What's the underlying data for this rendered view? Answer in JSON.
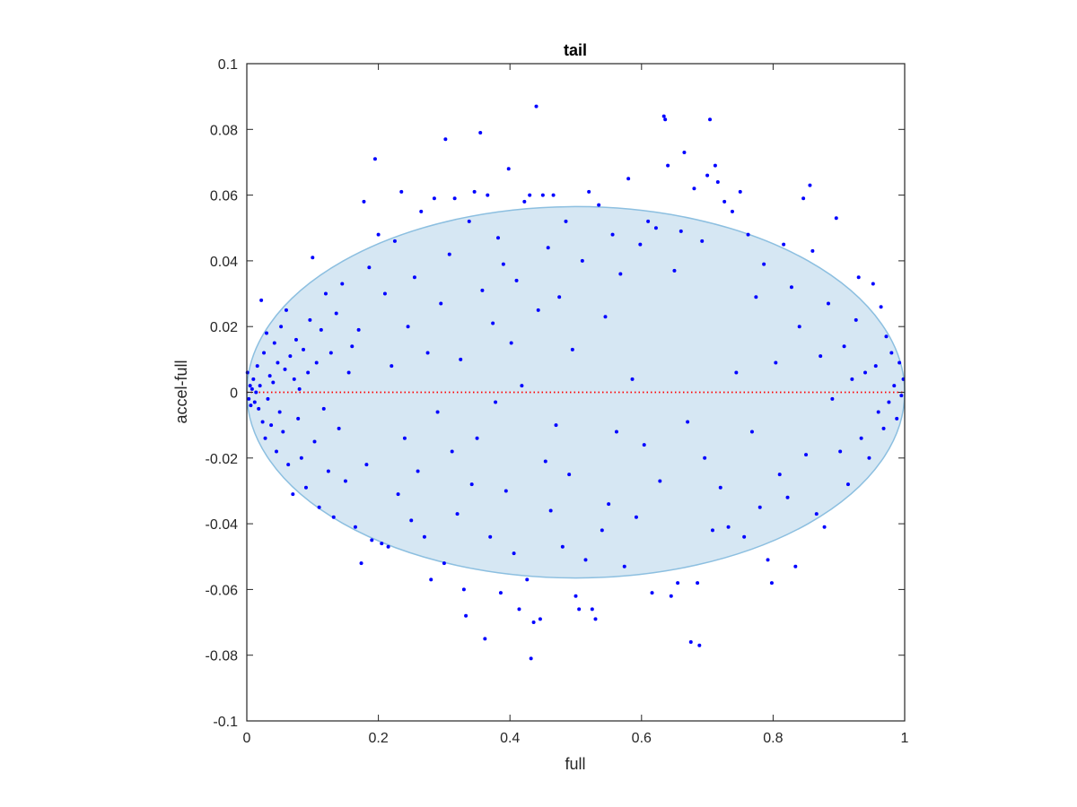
{
  "chart_data": {
    "type": "scatter",
    "title": "tail",
    "xlabel": "full",
    "ylabel": "accel-full",
    "xlim": [
      0,
      1
    ],
    "ylim": [
      -0.1,
      0.1
    ],
    "xticks": [
      0,
      0.2,
      0.4,
      0.6,
      0.8,
      1
    ],
    "xtick_labels": [
      "0",
      "0.2",
      "0.4",
      "0.6",
      "0.8",
      "1"
    ],
    "yticks": [
      -0.1,
      -0.08,
      -0.06,
      -0.04,
      -0.02,
      0,
      0.02,
      0.04,
      0.06,
      0.08,
      0.1
    ],
    "ytick_labels": [
      "-0.1",
      "-0.08",
      "-0.06",
      "-0.04",
      "-0.02",
      "0",
      "0.02",
      "0.04",
      "0.06",
      "0.08",
      "0.1"
    ],
    "grid": false,
    "box": true,
    "reference_line": {
      "y": 0,
      "x_range": [
        0,
        1
      ],
      "color": "#ff0000",
      "style": "dotted"
    },
    "region": {
      "shape": "ellipse",
      "center": [
        0.5,
        0
      ],
      "x_semi_axis": 0.5,
      "y_semi_axis": 0.0565,
      "fill": "#d6e7f3",
      "stroke": "#8cbfe0"
    },
    "series": [
      {
        "marker_color": "#0000ff",
        "points": [
          [
            0.001,
            0.006
          ],
          [
            0.003,
            -0.002
          ],
          [
            0.005,
            0.002
          ],
          [
            0.006,
            -0.004
          ],
          [
            0.008,
            0.001
          ],
          [
            0.01,
            0.004
          ],
          [
            0.012,
            -0.003
          ],
          [
            0.014,
            0.0
          ],
          [
            0.016,
            0.008
          ],
          [
            0.018,
            -0.005
          ],
          [
            0.02,
            0.002
          ],
          [
            0.022,
            0.028
          ],
          [
            0.024,
            -0.009
          ],
          [
            0.026,
            0.012
          ],
          [
            0.028,
            -0.014
          ],
          [
            0.03,
            0.018
          ],
          [
            0.032,
            -0.002
          ],
          [
            0.035,
            0.005
          ],
          [
            0.037,
            -0.01
          ],
          [
            0.04,
            0.003
          ],
          [
            0.042,
            0.015
          ],
          [
            0.045,
            -0.018
          ],
          [
            0.047,
            0.009
          ],
          [
            0.05,
            -0.006
          ],
          [
            0.052,
            0.02
          ],
          [
            0.055,
            -0.012
          ],
          [
            0.058,
            0.007
          ],
          [
            0.06,
            0.025
          ],
          [
            0.063,
            -0.022
          ],
          [
            0.066,
            0.011
          ],
          [
            0.07,
            -0.031
          ],
          [
            0.072,
            0.004
          ],
          [
            0.075,
            0.016
          ],
          [
            0.078,
            -0.008
          ],
          [
            0.08,
            0.001
          ],
          [
            0.083,
            -0.02
          ],
          [
            0.086,
            0.013
          ],
          [
            0.09,
            -0.029
          ],
          [
            0.093,
            0.006
          ],
          [
            0.096,
            0.022
          ],
          [
            0.1,
            0.041
          ],
          [
            0.103,
            -0.015
          ],
          [
            0.106,
            0.009
          ],
          [
            0.11,
            -0.035
          ],
          [
            0.113,
            0.019
          ],
          [
            0.117,
            -0.005
          ],
          [
            0.12,
            0.03
          ],
          [
            0.124,
            -0.024
          ],
          [
            0.128,
            0.012
          ],
          [
            0.132,
            -0.038
          ],
          [
            0.136,
            0.024
          ],
          [
            0.14,
            -0.011
          ],
          [
            0.145,
            0.033
          ],
          [
            0.15,
            -0.027
          ],
          [
            0.155,
            0.006
          ],
          [
            0.16,
            0.014
          ],
          [
            0.165,
            -0.041
          ],
          [
            0.17,
            0.019
          ],
          [
            0.174,
            -0.052
          ],
          [
            0.178,
            0.058
          ],
          [
            0.182,
            -0.022
          ],
          [
            0.186,
            0.038
          ],
          [
            0.19,
            -0.045
          ],
          [
            0.195,
            0.071
          ],
          [
            0.2,
            0.048
          ],
          [
            0.205,
            -0.046
          ],
          [
            0.21,
            0.03
          ],
          [
            0.215,
            -0.047
          ],
          [
            0.22,
            0.008
          ],
          [
            0.225,
            0.046
          ],
          [
            0.23,
            -0.031
          ],
          [
            0.235,
            0.061
          ],
          [
            0.24,
            -0.014
          ],
          [
            0.245,
            0.02
          ],
          [
            0.25,
            -0.039
          ],
          [
            0.255,
            0.035
          ],
          [
            0.26,
            -0.024
          ],
          [
            0.265,
            0.055
          ],
          [
            0.27,
            -0.044
          ],
          [
            0.275,
            0.012
          ],
          [
            0.28,
            -0.057
          ],
          [
            0.285,
            0.059
          ],
          [
            0.29,
            -0.006
          ],
          [
            0.295,
            0.027
          ],
          [
            0.3,
            -0.052
          ],
          [
            0.302,
            0.077
          ],
          [
            0.308,
            0.042
          ],
          [
            0.312,
            -0.018
          ],
          [
            0.316,
            0.059
          ],
          [
            0.32,
            -0.037
          ],
          [
            0.325,
            0.01
          ],
          [
            0.33,
            -0.06
          ],
          [
            0.333,
            -0.068
          ],
          [
            0.338,
            0.052
          ],
          [
            0.342,
            -0.028
          ],
          [
            0.346,
            0.061
          ],
          [
            0.35,
            -0.014
          ],
          [
            0.355,
            0.079
          ],
          [
            0.358,
            0.031
          ],
          [
            0.362,
            -0.075
          ],
          [
            0.366,
            0.06
          ],
          [
            0.37,
            -0.044
          ],
          [
            0.374,
            0.021
          ],
          [
            0.378,
            -0.003
          ],
          [
            0.382,
            0.047
          ],
          [
            0.386,
            -0.061
          ],
          [
            0.39,
            0.039
          ],
          [
            0.394,
            -0.03
          ],
          [
            0.398,
            0.068
          ],
          [
            0.402,
            0.015
          ],
          [
            0.406,
            -0.049
          ],
          [
            0.41,
            0.034
          ],
          [
            0.414,
            -0.066
          ],
          [
            0.418,
            0.002
          ],
          [
            0.422,
            0.058
          ],
          [
            0.426,
            -0.057
          ],
          [
            0.43,
            0.06
          ],
          [
            0.432,
            -0.081
          ],
          [
            0.436,
            -0.07
          ],
          [
            0.44,
            0.087
          ],
          [
            0.443,
            0.025
          ],
          [
            0.446,
            -0.069
          ],
          [
            0.45,
            0.06
          ],
          [
            0.454,
            -0.021
          ],
          [
            0.458,
            0.044
          ],
          [
            0.462,
            -0.036
          ],
          [
            0.466,
            0.06
          ],
          [
            0.47,
            -0.01
          ],
          [
            0.475,
            0.029
          ],
          [
            0.48,
            -0.047
          ],
          [
            0.485,
            0.052
          ],
          [
            0.49,
            -0.025
          ],
          [
            0.495,
            0.013
          ],
          [
            0.5,
            -0.062
          ],
          [
            0.505,
            -0.066
          ],
          [
            0.51,
            0.04
          ],
          [
            0.515,
            -0.051
          ],
          [
            0.52,
            0.061
          ],
          [
            0.525,
            -0.066
          ],
          [
            0.53,
            -0.069
          ],
          [
            0.535,
            0.057
          ],
          [
            0.54,
            -0.042
          ],
          [
            0.545,
            0.023
          ],
          [
            0.55,
            -0.034
          ],
          [
            0.556,
            0.048
          ],
          [
            0.562,
            -0.012
          ],
          [
            0.568,
            0.036
          ],
          [
            0.574,
            -0.053
          ],
          [
            0.58,
            0.065
          ],
          [
            0.586,
            0.004
          ],
          [
            0.592,
            -0.038
          ],
          [
            0.598,
            0.045
          ],
          [
            0.604,
            -0.016
          ],
          [
            0.61,
            0.052
          ],
          [
            0.616,
            -0.061
          ],
          [
            0.622,
            0.05
          ],
          [
            0.628,
            -0.027
          ],
          [
            0.634,
            0.084
          ],
          [
            0.636,
            0.083
          ],
          [
            0.64,
            0.069
          ],
          [
            0.645,
            -0.062
          ],
          [
            0.65,
            0.037
          ],
          [
            0.655,
            -0.058
          ],
          [
            0.66,
            0.049
          ],
          [
            0.665,
            0.073
          ],
          [
            0.67,
            -0.009
          ],
          [
            0.675,
            -0.076
          ],
          [
            0.68,
            0.062
          ],
          [
            0.685,
            -0.058
          ],
          [
            0.688,
            -0.077
          ],
          [
            0.692,
            0.046
          ],
          [
            0.696,
            -0.02
          ],
          [
            0.7,
            0.066
          ],
          [
            0.704,
            0.083
          ],
          [
            0.708,
            -0.042
          ],
          [
            0.712,
            0.069
          ],
          [
            0.716,
            0.064
          ],
          [
            0.72,
            -0.029
          ],
          [
            0.726,
            0.058
          ],
          [
            0.732,
            -0.041
          ],
          [
            0.738,
            0.055
          ],
          [
            0.744,
            0.006
          ],
          [
            0.75,
            0.061
          ],
          [
            0.756,
            -0.044
          ],
          [
            0.762,
            0.048
          ],
          [
            0.768,
            -0.012
          ],
          [
            0.774,
            0.029
          ],
          [
            0.78,
            -0.035
          ],
          [
            0.786,
            0.039
          ],
          [
            0.792,
            -0.051
          ],
          [
            0.798,
            -0.058
          ],
          [
            0.804,
            0.009
          ],
          [
            0.81,
            -0.025
          ],
          [
            0.816,
            0.045
          ],
          [
            0.822,
            -0.032
          ],
          [
            0.828,
            0.032
          ],
          [
            0.834,
            -0.053
          ],
          [
            0.84,
            0.02
          ],
          [
            0.846,
            0.059
          ],
          [
            0.85,
            -0.019
          ],
          [
            0.856,
            0.063
          ],
          [
            0.86,
            0.043
          ],
          [
            0.866,
            -0.037
          ],
          [
            0.872,
            0.011
          ],
          [
            0.878,
            -0.041
          ],
          [
            0.884,
            0.027
          ],
          [
            0.89,
            -0.002
          ],
          [
            0.896,
            0.053
          ],
          [
            0.902,
            -0.018
          ],
          [
            0.908,
            0.014
          ],
          [
            0.914,
            -0.028
          ],
          [
            0.92,
            0.004
          ],
          [
            0.926,
            0.022
          ],
          [
            0.93,
            0.035
          ],
          [
            0.934,
            -0.014
          ],
          [
            0.94,
            0.006
          ],
          [
            0.946,
            -0.02
          ],
          [
            0.952,
            0.033
          ],
          [
            0.956,
            0.008
          ],
          [
            0.96,
            -0.006
          ],
          [
            0.964,
            0.026
          ],
          [
            0.968,
            -0.011
          ],
          [
            0.972,
            0.017
          ],
          [
            0.976,
            -0.003
          ],
          [
            0.98,
            0.012
          ],
          [
            0.984,
            0.002
          ],
          [
            0.988,
            -0.008
          ],
          [
            0.992,
            0.009
          ],
          [
            0.995,
            -0.001
          ],
          [
            0.998,
            0.004
          ]
        ]
      }
    ]
  }
}
